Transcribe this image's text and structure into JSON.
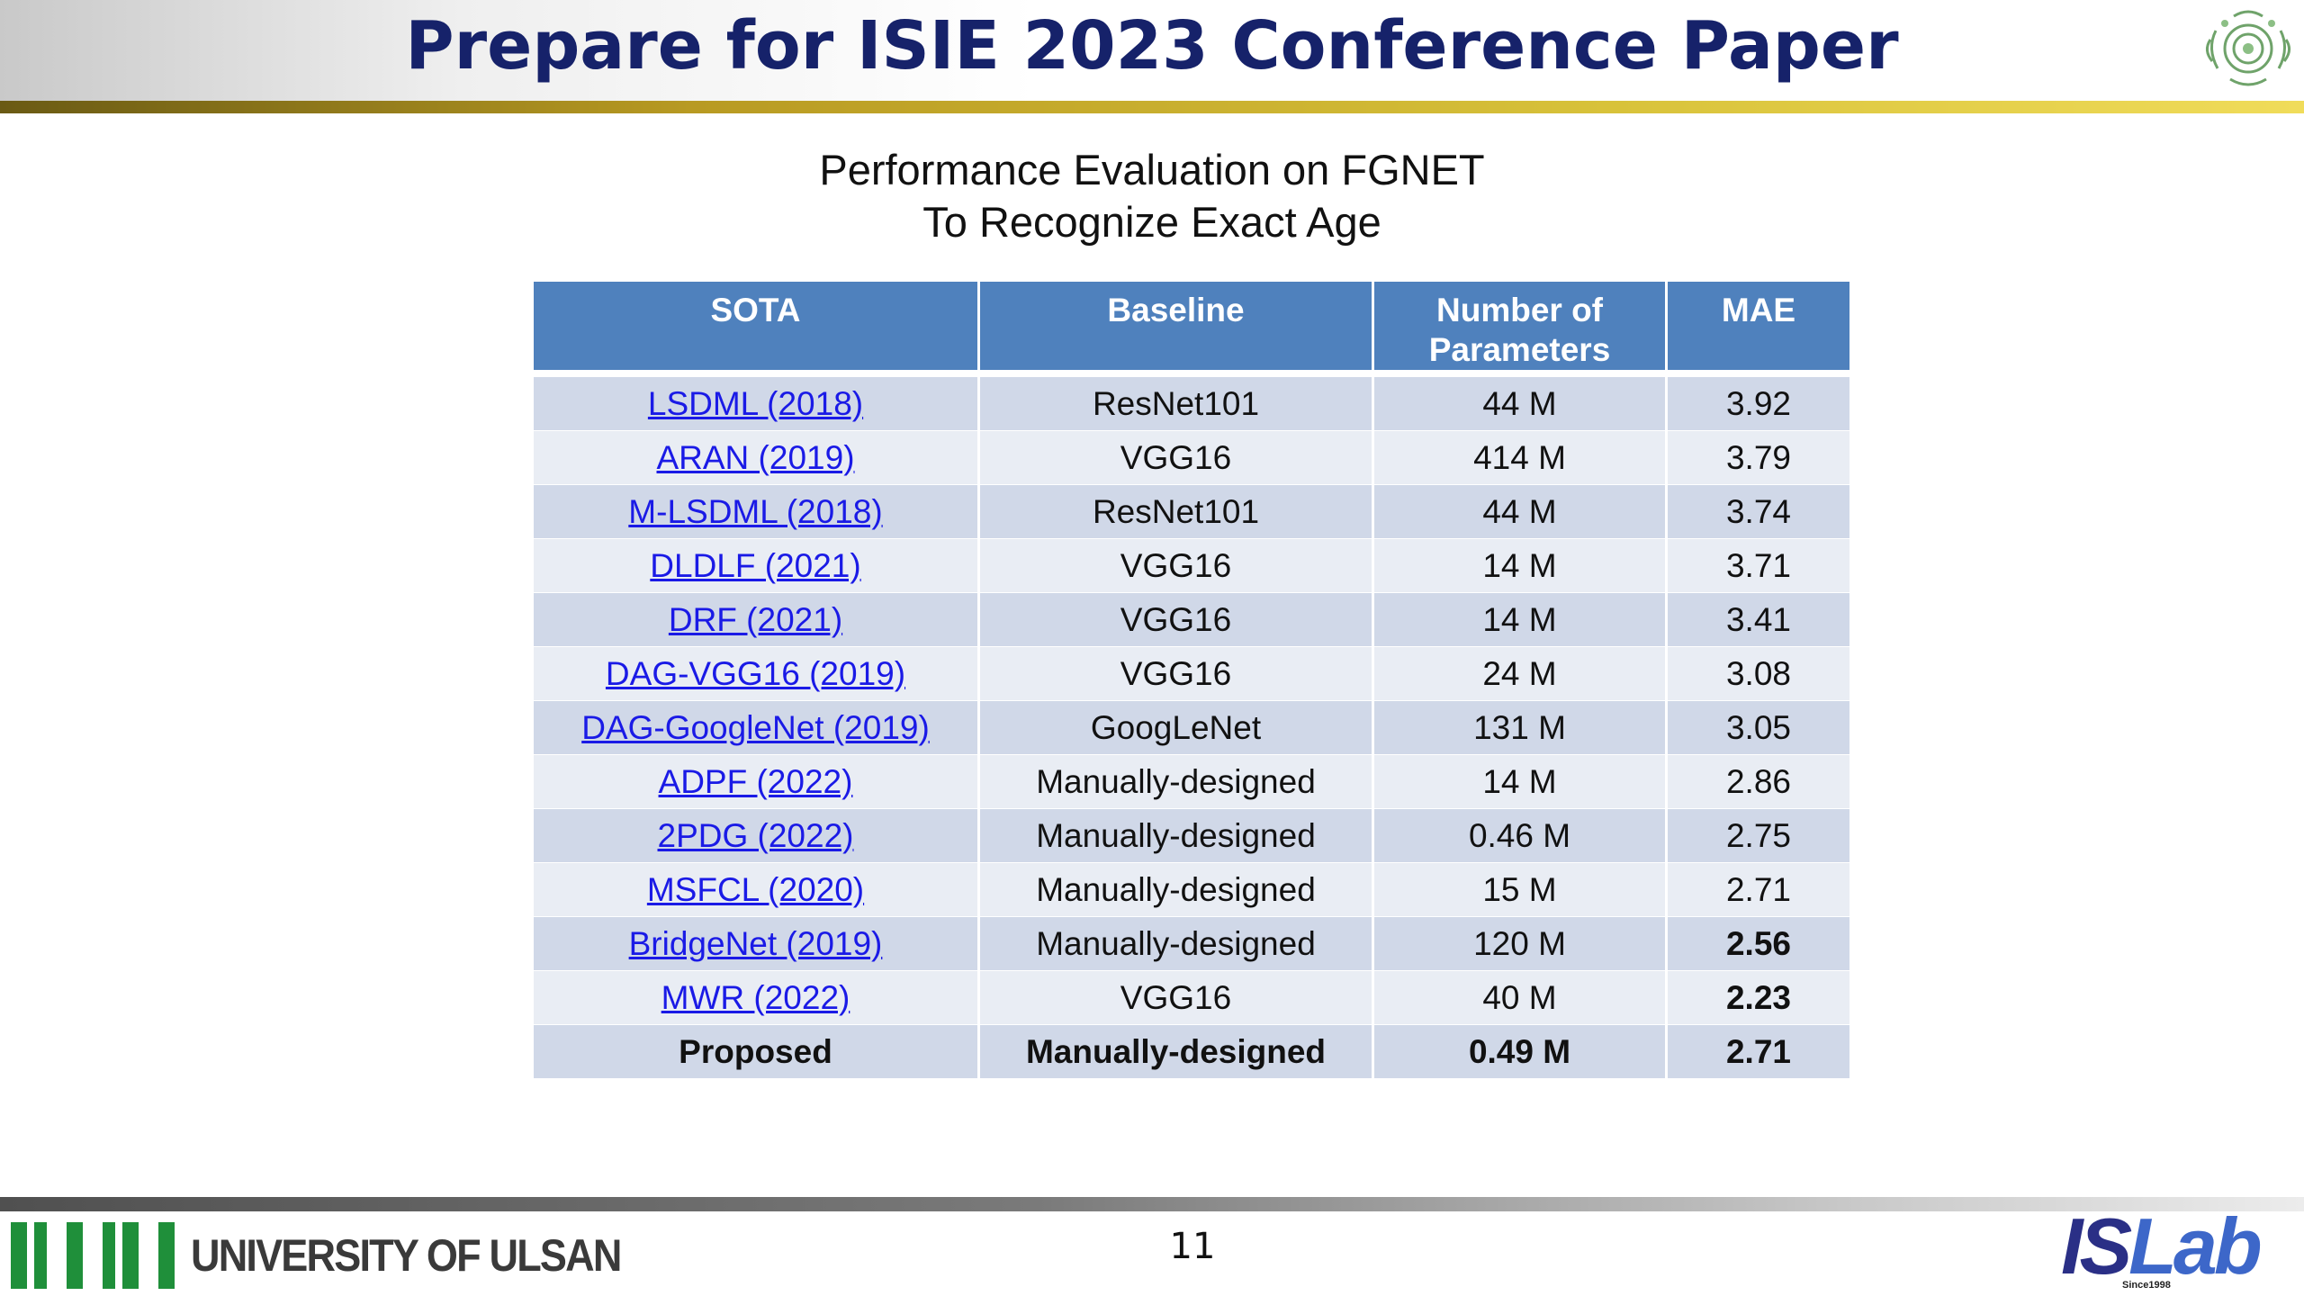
{
  "slide": {
    "title": "Prepare for ISIE 2023 Conference Paper",
    "subtitle_line1": "Performance Evaluation on FGNET",
    "subtitle_line2": "To Recognize Exact Age",
    "page_number": "11"
  },
  "table": {
    "headers": {
      "sota": "SOTA",
      "baseline": "Baseline",
      "params_line1": "Number of",
      "params_line2": "Parameters",
      "mae": "MAE"
    },
    "rows": [
      {
        "sota": "LSDML (2018)",
        "baseline": "ResNet101",
        "params": "44 M",
        "mae": "3.92",
        "mae_bold": false
      },
      {
        "sota": "ARAN (2019)",
        "baseline": "VGG16",
        "params": "414 M",
        "mae": "3.79",
        "mae_bold": false
      },
      {
        "sota": "M-LSDML (2018)",
        "baseline": "ResNet101",
        "params": "44 M",
        "mae": "3.74",
        "mae_bold": false
      },
      {
        "sota": "DLDLF (2021)",
        "baseline": "VGG16",
        "params": "14 M",
        "mae": "3.71",
        "mae_bold": false
      },
      {
        "sota": "DRF (2021)",
        "baseline": "VGG16",
        "params": "14 M",
        "mae": "3.41",
        "mae_bold": false
      },
      {
        "sota": "DAG-VGG16 (2019)",
        "baseline": "VGG16",
        "params": "24 M",
        "mae": "3.08",
        "mae_bold": false
      },
      {
        "sota": "DAG-GoogleNet (2019)",
        "baseline": "GoogLeNet",
        "params": "131 M",
        "mae": "3.05",
        "mae_bold": false
      },
      {
        "sota": "ADPF (2022)",
        "baseline": "Manually-designed",
        "params": "14 M",
        "mae": "2.86",
        "mae_bold": false
      },
      {
        "sota": "2PDG (2022)",
        "baseline": "Manually-designed",
        "params": "0.46 M",
        "mae": "2.75",
        "mae_bold": false
      },
      {
        "sota": "MSFCL (2020)",
        "baseline": "Manually-designed",
        "params": "15 M",
        "mae": "2.71",
        "mae_bold": false
      },
      {
        "sota": "BridgeNet (2019)",
        "baseline": "Manually-designed",
        "params": "120 M",
        "mae": "2.56",
        "mae_bold": true
      },
      {
        "sota": "MWR (2022)",
        "baseline": "VGG16",
        "params": "40 M",
        "mae": "2.23",
        "mae_bold": true
      }
    ],
    "proposed": {
      "sota": "Proposed",
      "baseline": "Manually-designed",
      "params": "0.49 M",
      "mae": "2.71"
    }
  },
  "footer": {
    "university": "UNIVERSITY OF ULSAN",
    "lab_part1": "IS",
    "lab_part2": "Lab",
    "lab_tagline": "Since1998"
  },
  "colors": {
    "title": "#16226a",
    "table_header": "#4f81bd",
    "row_dark": "#d0d8e8",
    "row_light": "#e9edf4",
    "link": "#1a1ae6",
    "ulsan_green": "#1f8f3a"
  },
  "icons": {
    "emblem": "university-emblem-icon",
    "ulsan": "ulsan-bars-logo",
    "islab": "islab-logo"
  }
}
